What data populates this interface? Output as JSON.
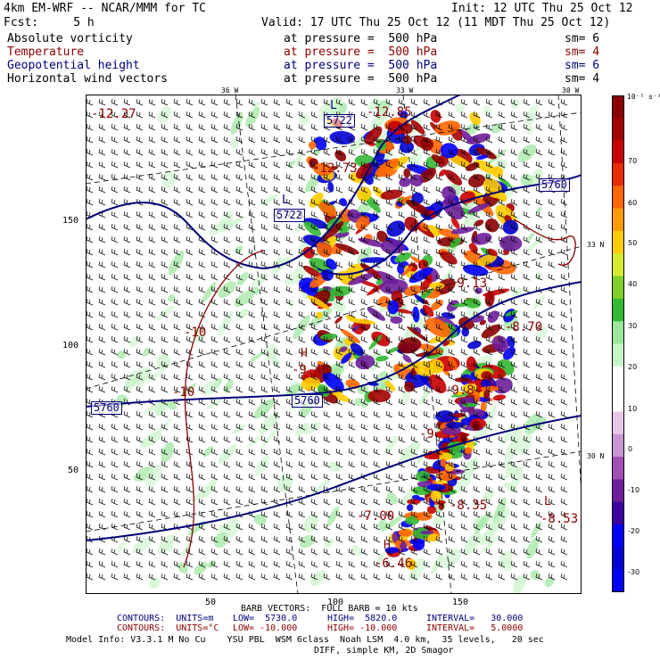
{
  "header": {
    "model": "4km EM-WRF -- NCAR/MMM for TC",
    "init": "Init: 12 UTC Thu 25 Oct 12",
    "fcst": "Fcst:     5 h",
    "valid": "Valid: 17 UTC Thu 25 Oct 12 (11 MDT Thu 25 Oct 12)"
  },
  "fields": [
    {
      "name": "Absolute vorticity",
      "pressure": "at pressure =  500 hPa",
      "sm": "sm= 6",
      "color": "#000000"
    },
    {
      "name": "Temperature",
      "pressure": "at pressure =  500 hPa",
      "sm": "sm= 4",
      "color": "#8b0000"
    },
    {
      "name": "Geopotential height",
      "pressure": "at pressure =  500 hPa",
      "sm": "sm= 6",
      "color": "#00007a"
    },
    {
      "name": "Horizontal wind vectors",
      "pressure": "at pressure =  500 hPa",
      "sm": "sm= 4",
      "color": "#000000"
    }
  ],
  "map": {
    "lon_top_labels": [
      "36 W",
      "33 W",
      "30 W"
    ],
    "lat_right_labels": [
      "33 N",
      "30 N"
    ],
    "y_axis_ticks": [
      "150",
      "100",
      "50"
    ],
    "x_axis_ticks": [
      "50",
      "100",
      "150"
    ],
    "height_labels": [
      "5722",
      "5722",
      "5760",
      "5760",
      "5760"
    ],
    "low_markers": [
      "L",
      "L",
      "L"
    ],
    "high_markers": [
      "H",
      "H"
    ],
    "temperature_labels": [
      "-12.27",
      "-12.85",
      "-12.73",
      "-10",
      "-10",
      "-9.46",
      "-8.70",
      "-9.13",
      "-9.8",
      "-9",
      "-7.00",
      "-6.46",
      "-8.53",
      "-8.35"
    ]
  },
  "colorbar": {
    "unit": "10⁻⁵ s⁻¹",
    "ticks": [
      "70",
      "60",
      "50",
      "40",
      "30",
      "20",
      "10",
      "0",
      "-10",
      "-20",
      "-30"
    ],
    "colors": [
      "#8b0000",
      "#a50000",
      "#c80000",
      "#e62d00",
      "#ff6600",
      "#ff9b00",
      "#ffcc00",
      "#d7eb31",
      "#7fd02a",
      "#33b833",
      "#9be69b",
      "#c8f5c8",
      "#ffffff",
      "#ffffff",
      "#e6c8e6",
      "#c896d2",
      "#a050b4",
      "#6e1e9b",
      "#3c00a0",
      "#0000ff",
      "#0000d2",
      "#0000ff"
    ]
  },
  "footer": {
    "barb": "BARB VECTORS:  FULL BARB = 10 kts",
    "contour1_label": "CONTOURS:  UNITS=m",
    "contour1_low": "LOW=  5730.0",
    "contour1_high": "HIGH=  5820.0",
    "contour1_interval": "INTERVAL=   30.000",
    "contour2_label": "CONTOURS:  UNITS=°C",
    "contour2_low": "LOW= -10.000",
    "contour2_high": "HIGH= -10.000",
    "contour2_interval": "INTERVAL=   5.0000",
    "model_info": "Model Info: V3.3.1 M No Cu    YSU PBL  WSM 6class  Noah LSM  4.0 km,  35 levels,   20 sec",
    "diff": "DIFF, simple KM, 2D Smagor"
  }
}
